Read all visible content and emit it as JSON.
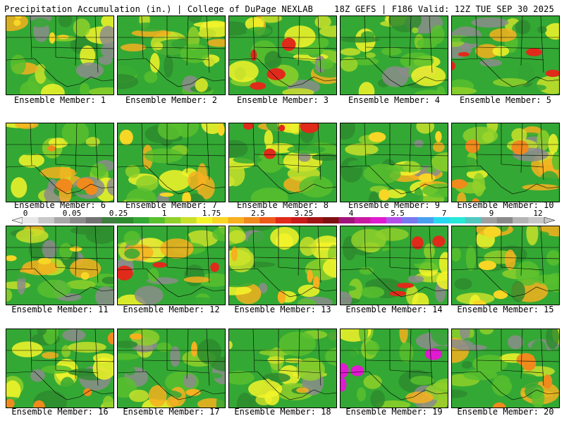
{
  "header": {
    "left": "Precipitation Accumulation (in.) | College of DuPage NEXLAB",
    "right": "18Z GEFS | F186 Valid: 12Z TUE SEP 30 2025"
  },
  "colorbar": {
    "tick_labels": [
      "0",
      "0.05",
      "0.25",
      "1",
      "1.75",
      "2.5",
      "3.25",
      "4",
      "5.5",
      "7",
      "9",
      "12"
    ],
    "colors": [
      "#e8e8e8",
      "#c8c8c8",
      "#a8a8a8",
      "#8c8c8c",
      "#727272",
      "#3f7f3f",
      "#2e8b2e",
      "#34a834",
      "#58c02e",
      "#8fd02a",
      "#c8e02a",
      "#f4f42a",
      "#f7d625",
      "#f7b020",
      "#f08a1c",
      "#ee5a1a",
      "#e02a1a",
      "#c81a1a",
      "#a01414",
      "#801010",
      "#a0147a",
      "#c81aa0",
      "#e01ad0",
      "#b450e8",
      "#7878f0",
      "#4aa0f0",
      "#28d8f0",
      "#28e8d8",
      "#50c8c0",
      "#a0a0a0",
      "#8a8a8a",
      "#b4b4b4",
      "#c8c8c8"
    ]
  },
  "members": [
    {
      "label": "Ensemble Member: 1",
      "accent": "#f7d625"
    },
    {
      "label": "Ensemble Member: 2",
      "accent": "#c8e02a"
    },
    {
      "label": "Ensemble Member: 3",
      "accent": "#e02a1a"
    },
    {
      "label": "Ensemble Member: 4",
      "accent": "#8fd02a"
    },
    {
      "label": "Ensemble Member: 5",
      "accent": "#e02a1a"
    },
    {
      "label": "Ensemble Member: 6",
      "accent": "#f08a1c"
    },
    {
      "label": "Ensemble Member: 7",
      "accent": "#f7d625"
    },
    {
      "label": "Ensemble Member: 8",
      "accent": "#e02a1a"
    },
    {
      "label": "Ensemble Member: 9",
      "accent": "#f7d625"
    },
    {
      "label": "Ensemble Member: 10",
      "accent": "#f08a1c"
    },
    {
      "label": "Ensemble Member: 11",
      "accent": "#f7d625"
    },
    {
      "label": "Ensemble Member: 12",
      "accent": "#e02a1a"
    },
    {
      "label": "Ensemble Member: 13",
      "accent": "#f7b020"
    },
    {
      "label": "Ensemble Member: 14",
      "accent": "#e02a1a"
    },
    {
      "label": "Ensemble Member: 15",
      "accent": "#f7d625"
    },
    {
      "label": "Ensemble Member: 16",
      "accent": "#f08a1c"
    },
    {
      "label": "Ensemble Member: 17",
      "accent": "#f7b020"
    },
    {
      "label": "Ensemble Member: 18",
      "accent": "#c8e02a"
    },
    {
      "label": "Ensemble Member: 19",
      "accent": "#e01ad0"
    },
    {
      "label": "Ensemble Member: 20",
      "accent": "#f08a1c"
    }
  ]
}
